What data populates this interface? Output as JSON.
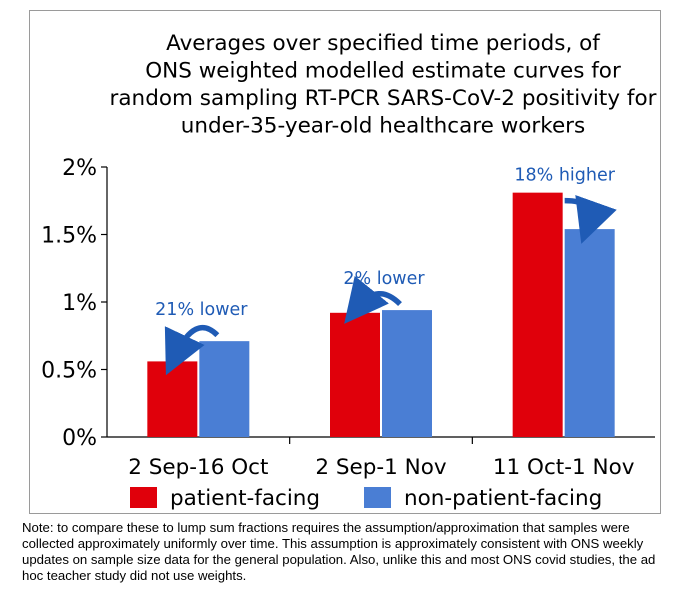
{
  "chart_data": {
    "type": "bar",
    "title_lines": [
      "Averages over specified time periods, of",
      "ONS weighted modelled estimate curves for",
      "random sampling RT-PCR SARS-CoV-2 positivity for",
      "under-35-year-old healthcare workers"
    ],
    "categories": [
      "2 Sep-16 Oct",
      "2 Sep-1 Nov",
      "11 Oct-1 Nov"
    ],
    "series": [
      {
        "name": "patient-facing",
        "color": "#e0000b",
        "values": [
          0.56,
          0.92,
          1.81
        ]
      },
      {
        "name": "non-patient-facing",
        "color": "#4a7ed4",
        "values": [
          0.71,
          0.94,
          1.54
        ]
      }
    ],
    "yticks": [
      "0%",
      "0.5%",
      "1%",
      "1.5%",
      "2%"
    ],
    "ylim": [
      0,
      2
    ],
    "annotations": [
      {
        "category": 0,
        "text": "21% lower",
        "direction": "left"
      },
      {
        "category": 1,
        "text": "2% lower",
        "direction": "left"
      },
      {
        "category": 2,
        "text": "18% higher",
        "direction": "right"
      }
    ],
    "annotation_color": "#1f5bb5",
    "legend_position": "bottom",
    "grid": false
  },
  "note": "Note: to compare these to lump sum fractions requires the assumption/approximation that samples were collected approximately uniformly over time. This assumption is approximately consistent with ONS weekly updates on sample size data for the general population. Also, unlike this and most ONS covid studies, the ad hoc teacher study did not use weights."
}
